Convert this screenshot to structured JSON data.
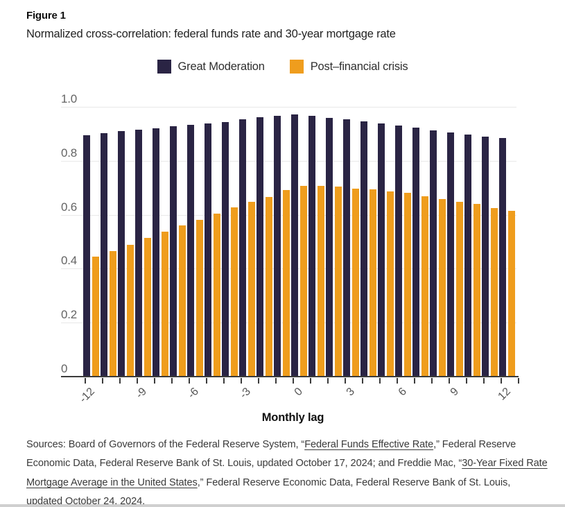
{
  "figure": {
    "label": "Figure 1",
    "title": "Normalized cross-correlation: federal funds rate and 30-year mortgage rate"
  },
  "legend": [
    {
      "name": "Great Moderation",
      "color": "#2A2444"
    },
    {
      "name": "Post–financial crisis",
      "color": "#EF9D1D"
    }
  ],
  "colors": {
    "axis": "#3b3b3b",
    "gridline": "#e8e8e8",
    "navy": "#2A2444",
    "orange": "#EF9D1D"
  },
  "chart_data": {
    "type": "bar",
    "title": "Normalized cross-correlation: federal funds rate and 30-year mortgage rate",
    "xlabel": "Monthly lag",
    "ylabel": "",
    "x": [
      -12,
      -11,
      -10,
      -9,
      -8,
      -7,
      -6,
      -5,
      -4,
      -3,
      -2,
      -1,
      0,
      1,
      2,
      3,
      4,
      5,
      6,
      7,
      8,
      9,
      10,
      11,
      12
    ],
    "x_tick_lags": [
      -12,
      -9,
      -6,
      -3,
      0,
      3,
      6,
      9,
      12
    ],
    "x_tick_labels": [
      "-12",
      "-9",
      "-6",
      "-3",
      "0",
      "3",
      "6",
      "9",
      "12"
    ],
    "y_ticks": [
      0,
      0.2,
      0.4,
      0.6,
      0.8,
      1.0
    ],
    "y_tick_labels": [
      "0",
      "0.2",
      "0.4",
      "0.6",
      "0.8",
      "1.0"
    ],
    "ylim": [
      0,
      1.0
    ],
    "grid": true,
    "legend_position": "top-center",
    "series": [
      {
        "name": "Great Moderation",
        "color": "#2A2444",
        "values": [
          0.895,
          0.903,
          0.909,
          0.916,
          0.92,
          0.927,
          0.932,
          0.938,
          0.943,
          0.954,
          0.961,
          0.967,
          0.973,
          0.966,
          0.96,
          0.954,
          0.946,
          0.938,
          0.931,
          0.922,
          0.912,
          0.905,
          0.897,
          0.89,
          0.884
        ]
      },
      {
        "name": "Post–financial crisis",
        "color": "#EF9D1D",
        "values": [
          0.445,
          0.466,
          0.489,
          0.513,
          0.537,
          0.56,
          0.582,
          0.605,
          0.627,
          0.648,
          0.665,
          0.691,
          0.706,
          0.708,
          0.704,
          0.697,
          0.693,
          0.686,
          0.68,
          0.669,
          0.659,
          0.649,
          0.639,
          0.625,
          0.614
        ]
      }
    ]
  },
  "footer": {
    "parts": [
      {
        "text": "Sources: Board of Governors of the Federal Reserve System, “"
      },
      {
        "text": "Federal Funds Effective Rate",
        "link": true
      },
      {
        "text": ",” Federal Reserve Economic Data, Federal Reserve Bank of St. Louis, updated October 17, 2024; and Freddie Mac, “"
      },
      {
        "text": "30-Year Fixed Rate Mortgage Average in the United States",
        "link": true
      },
      {
        "text": ",” Federal Reserve Economic Data, Federal Reserve Bank of St. Louis, updated October 24, 2024."
      }
    ]
  }
}
